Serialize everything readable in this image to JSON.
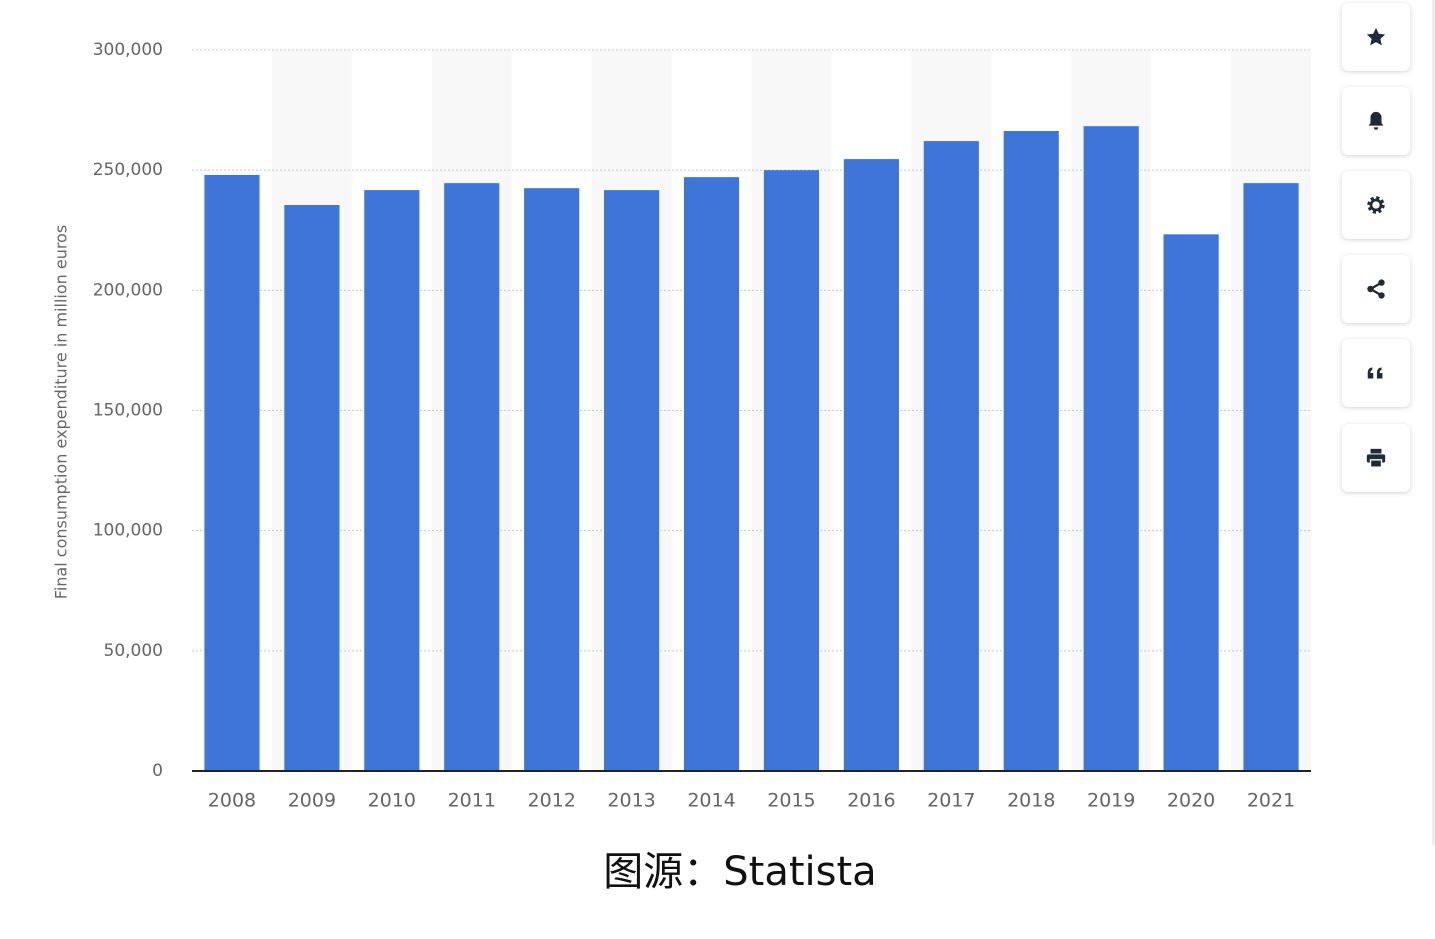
{
  "chart_data": {
    "type": "bar",
    "y_label": "Final consumption expenditure in million euros",
    "categories": [
      "2008",
      "2009",
      "2010",
      "2011",
      "2012",
      "2013",
      "2014",
      "2015",
      "2016",
      "2017",
      "2018",
      "2019",
      "2020",
      "2021"
    ],
    "values": [
      248000,
      235500,
      241700,
      244600,
      242500,
      241700,
      247100,
      250000,
      254600,
      262100,
      266300,
      268300,
      223300,
      244600
    ],
    "color": "#3f74d8",
    "ylim": [
      0,
      300000
    ],
    "yticks": [
      0,
      {
        "value": 50000,
        "label": "50,000"
      },
      {
        "value": 100000,
        "label": "100,000"
      },
      {
        "value": 150000,
        "label": "150,000"
      },
      {
        "value": 200000,
        "label": "200,000"
      },
      {
        "value": 250000,
        "label": "250,000"
      },
      {
        "value": 300000,
        "label": "300,000"
      }
    ],
    "grid": true,
    "caption": "图源：Statista"
  }
}
